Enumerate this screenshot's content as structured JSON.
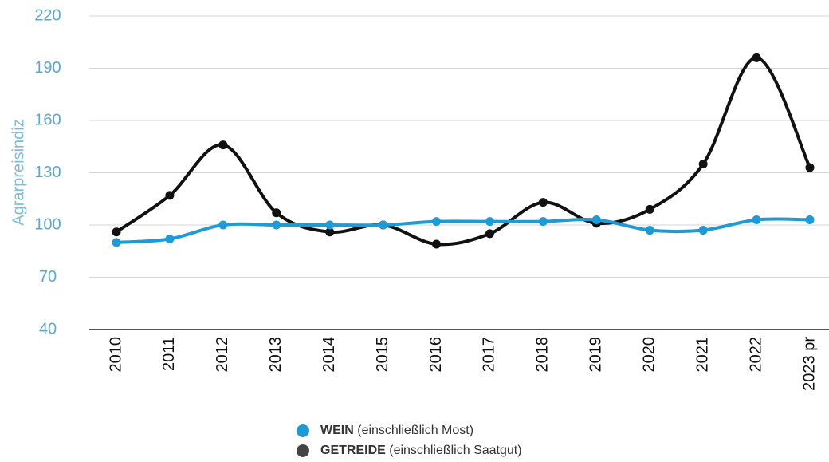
{
  "chart_data": {
    "type": "line",
    "y_label": "Agrarpreisindiz",
    "categories": [
      "2010",
      "2011",
      "2012",
      "2013",
      "2014",
      "2015",
      "2016",
      "2017",
      "2018",
      "2019",
      "2020",
      "2021",
      "2022",
      "2023 pr"
    ],
    "series": [
      {
        "name": "WEIN",
        "detail": "(einschließlich Most)",
        "color": "#1e9ad6",
        "values": [
          90,
          92,
          100,
          100,
          100,
          100,
          102,
          102,
          102,
          103,
          97,
          97,
          103,
          103
        ]
      },
      {
        "name": "GETREIDE",
        "detail": "(einschließlich Saatgut)",
        "color": "#111111",
        "values": [
          96,
          117,
          146,
          107,
          96,
          100,
          89,
          95,
          113,
          101,
          109,
          135,
          196,
          133
        ]
      }
    ],
    "ylim": [
      40,
      220
    ],
    "yticks": [
      40,
      70,
      100,
      130,
      160,
      190,
      220
    ],
    "grid": true
  }
}
